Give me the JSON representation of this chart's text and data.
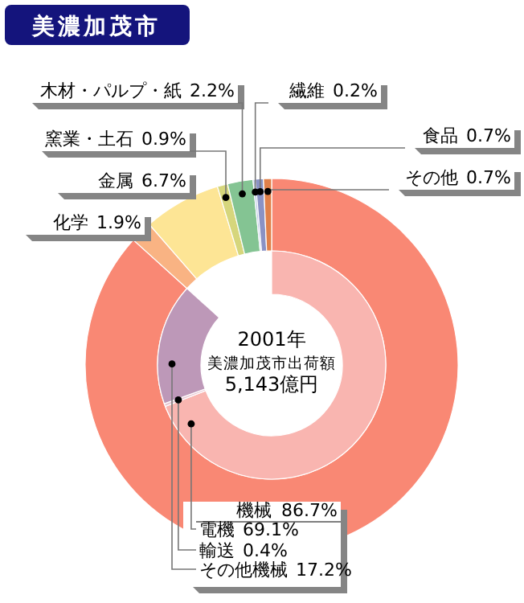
{
  "chart_data": [
    {
      "type": "donut",
      "title": "美濃加茂市",
      "annotations": [
        "2001年",
        "美濃加茂市出荷額",
        "5,143億円"
      ],
      "categories": [
        "機械",
        "化学",
        "金属",
        "窯業・土石",
        "木材・パルプ・紙",
        "繊維",
        "食品",
        "その他"
      ],
      "values": [
        86.7,
        1.9,
        6.7,
        0.9,
        2.2,
        0.2,
        0.7,
        0.7
      ],
      "value_labels": [
        "86.7%",
        "1.9%",
        "6.7%",
        "0.9%",
        "2.2%",
        "0.2%",
        "0.7%",
        "0.7%"
      ],
      "colors": [
        "#f98874",
        "#f9b383",
        "#fde595",
        "#d6d67c",
        "#84c493",
        "#bcc8e6",
        "#8a92c4",
        "#e0804a"
      ]
    },
    {
      "type": "donut",
      "categories": [
        "電機",
        "輸送",
        "その他機械"
      ],
      "values": [
        69.1,
        0.4,
        17.2
      ],
      "value_labels": [
        "69.1%",
        "0.4%",
        "17.2%"
      ],
      "colors": [
        "#f9b5b0",
        "#e8c8d4",
        "#bd98b8"
      ]
    }
  ]
}
